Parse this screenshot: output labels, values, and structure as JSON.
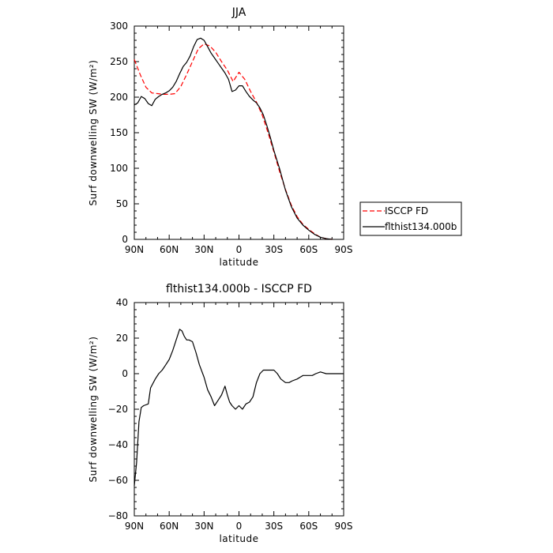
{
  "chart_data": [
    {
      "type": "line",
      "title": "JJA",
      "xlabel": "latitude",
      "ylabel": "Surf downwelling SW (W/m²)",
      "xlim": [
        90,
        -90
      ],
      "ylim": [
        0,
        300
      ],
      "xticks": [
        90,
        60,
        30,
        0,
        -30,
        -60,
        -90
      ],
      "xtick_labels": [
        "90N",
        "60N",
        "30N",
        "0",
        "30S",
        "60S",
        "90S"
      ],
      "yticks": [
        0,
        50,
        100,
        150,
        200,
        250,
        300
      ],
      "ytick_labels": [
        "0",
        "50",
        "100",
        "150",
        "200",
        "250",
        "300"
      ],
      "legend_position": "right",
      "series": [
        {
          "name": "ISCCP FD",
          "style": "dashed",
          "color": "#ff0000",
          "x": [
            90,
            85,
            80,
            75,
            70,
            65,
            60,
            55,
            50,
            45,
            40,
            35,
            30,
            25,
            20,
            15,
            10,
            5,
            0,
            -5,
            -10,
            -15,
            -20,
            -25,
            -30,
            -35,
            -40,
            -45,
            -50,
            -55,
            -60,
            -65,
            -70,
            -75,
            -80
          ],
          "y": [
            253,
            232,
            214,
            206,
            205,
            204,
            204,
            205,
            215,
            232,
            250,
            268,
            275,
            272,
            263,
            250,
            238,
            222,
            235,
            225,
            208,
            193,
            175,
            150,
            123,
            95,
            70,
            48,
            32,
            21,
            14,
            8,
            3,
            1,
            0
          ]
        },
        {
          "name": "flthist134.000b",
          "style": "solid",
          "color": "#000000",
          "x": [
            90,
            87,
            84,
            81,
            78,
            75,
            72,
            69,
            66,
            63,
            60,
            57,
            54,
            51,
            48,
            45,
            42,
            39,
            36,
            33,
            30,
            27,
            24,
            21,
            18,
            15,
            12,
            9,
            6,
            3,
            0,
            -3,
            -6,
            -9,
            -12,
            -15,
            -18,
            -21,
            -24,
            -27,
            -30,
            -35,
            -40,
            -45,
            -50,
            -55,
            -60,
            -65,
            -70,
            -75,
            -80
          ],
          "y": [
            189,
            192,
            201,
            198,
            191,
            188,
            197,
            201,
            204,
            206,
            209,
            214,
            222,
            233,
            243,
            249,
            258,
            271,
            281,
            283,
            280,
            271,
            262,
            255,
            248,
            241,
            234,
            225,
            208,
            210,
            216,
            216,
            208,
            201,
            196,
            192,
            185,
            175,
            160,
            143,
            125,
            99,
            69,
            46,
            30,
            20,
            13,
            7,
            3,
            1,
            0
          ]
        }
      ]
    },
    {
      "type": "line",
      "title": "flthist134.000b - ISCCP FD",
      "xlabel": "latitude",
      "ylabel": "Surf downwelling SW (W/m²)",
      "xlim": [
        90,
        -90
      ],
      "ylim": [
        -80,
        40
      ],
      "xticks": [
        90,
        60,
        30,
        0,
        -30,
        -60,
        -90
      ],
      "xtick_labels": [
        "90N",
        "60N",
        "30N",
        "0",
        "30S",
        "60S",
        "90S"
      ],
      "yticks": [
        -80,
        -60,
        -40,
        -20,
        0,
        20,
        40
      ],
      "ytick_labels": [
        "−80",
        "−60",
        "−40",
        "−20",
        "0",
        "20",
        "40"
      ],
      "series": [
        {
          "style": "solid",
          "color": "#000000",
          "x": [
            90,
            88,
            86,
            84,
            82,
            78,
            76,
            72,
            69,
            66,
            63,
            60,
            57,
            54,
            51,
            49,
            47,
            45,
            43,
            40,
            37,
            34,
            30,
            27,
            24,
            21,
            18,
            15,
            12,
            10,
            8,
            6,
            3,
            0,
            -3,
            -6,
            -9,
            -12,
            -15,
            -18,
            -21,
            -24,
            -27,
            -30,
            -33,
            -36,
            -40,
            -43,
            -46,
            -50,
            -55,
            -60,
            -63,
            -66,
            -70,
            -75,
            -80,
            -90
          ],
          "y": [
            -63,
            -50,
            -27,
            -19,
            -18,
            -17,
            -8,
            -3,
            0,
            2,
            5,
            8,
            13,
            19,
            25,
            24,
            21,
            19,
            19,
            18,
            12,
            5,
            -2,
            -9,
            -13,
            -18,
            -15,
            -12,
            -7,
            -12,
            -16,
            -18,
            -20,
            -18,
            -20,
            -17,
            -16,
            -13,
            -5,
            0,
            2,
            2,
            2,
            2,
            0,
            -3,
            -5,
            -5,
            -4,
            -3,
            -1,
            -1,
            -1,
            0,
            1,
            0,
            0,
            0
          ]
        }
      ]
    }
  ]
}
